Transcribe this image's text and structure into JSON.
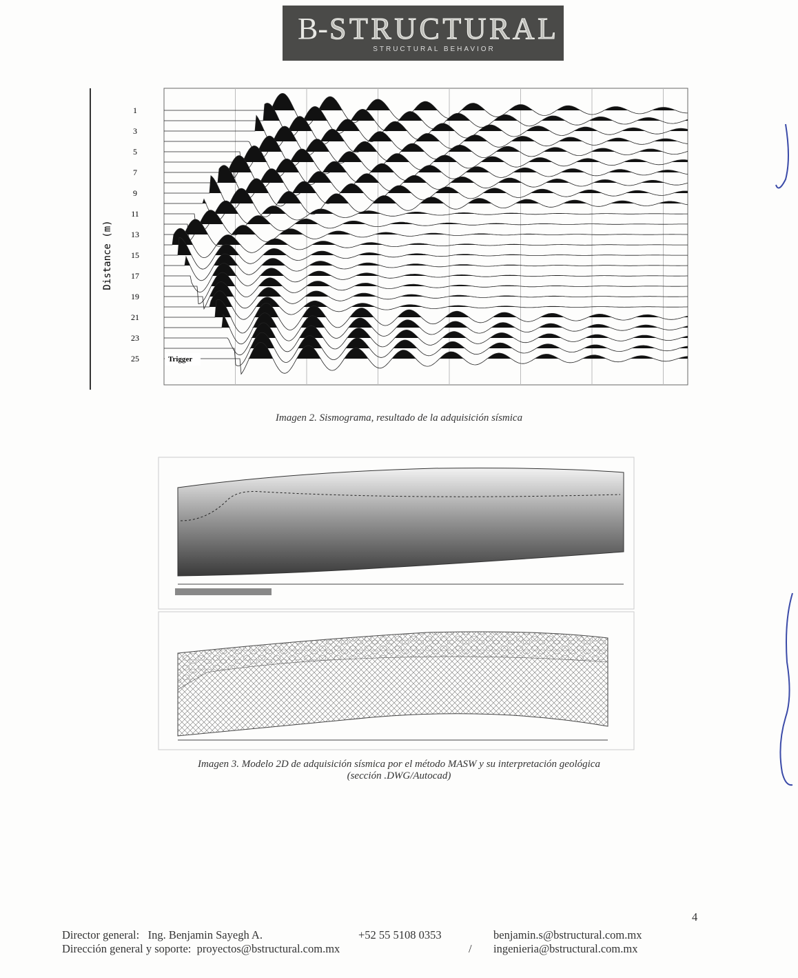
{
  "header": {
    "logo_prefix": "B-",
    "logo_main": "STRUCTURAL",
    "tagline": "STRUCTURAL BEHAVIOR"
  },
  "figure_1": {
    "y_axis_label": "Distance (m)",
    "distance_labels": [
      "1",
      "3",
      "5",
      "7",
      "9",
      "11",
      "13",
      "15",
      "17",
      "19",
      "21",
      "23",
      "25"
    ],
    "trigger_label": "Trigger",
    "caption": "Imagen 2. Sismograma, resultado de la adquisición sísmica"
  },
  "figure_2": {
    "caption_lines": [
      "Imagen 3. Modelo 2D de adquisición sísmica por el método MASW y su interpretación geológica",
      "(sección .DWG/Autocad)"
    ]
  },
  "footer": {
    "page_number": "4",
    "line_1": {
      "role": "Director general:",
      "name": "Ing. Benjamin Sayegh A.",
      "phone": "+52 55 5108 0353",
      "email": "benjamin.s@bstructural.com.mx"
    },
    "line_2": {
      "role": "Dirección general y soporte:",
      "email_1": "proyectos@bstructural.com.mx",
      "separator": "/",
      "email_2": "ingenieria@bstructural.com.mx"
    }
  }
}
